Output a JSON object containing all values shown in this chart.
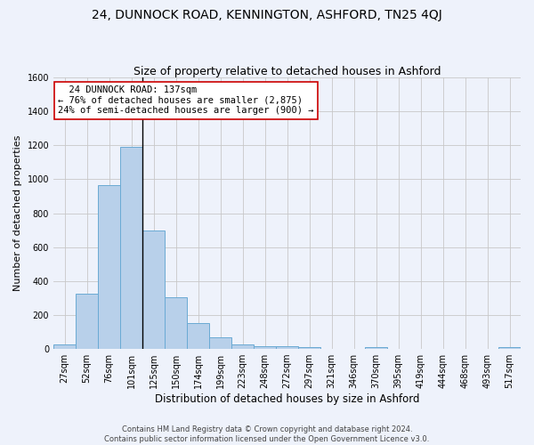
{
  "title": "24, DUNNOCK ROAD, KENNINGTON, ASHFORD, TN25 4QJ",
  "subtitle": "Size of property relative to detached houses in Ashford",
  "xlabel": "Distribution of detached houses by size in Ashford",
  "ylabel": "Number of detached properties",
  "footer_line1": "Contains HM Land Registry data © Crown copyright and database right 2024.",
  "footer_line2": "Contains public sector information licensed under the Open Government Licence v3.0.",
  "bar_labels": [
    "27sqm",
    "52sqm",
    "76sqm",
    "101sqm",
    "125sqm",
    "150sqm",
    "174sqm",
    "199sqm",
    "223sqm",
    "248sqm",
    "272sqm",
    "297sqm",
    "321sqm",
    "346sqm",
    "370sqm",
    "395sqm",
    "419sqm",
    "444sqm",
    "468sqm",
    "493sqm",
    "517sqm"
  ],
  "bar_values": [
    28,
    325,
    965,
    1190,
    700,
    305,
    150,
    70,
    28,
    18,
    15,
    10,
    0,
    0,
    12,
    0,
    0,
    0,
    0,
    0,
    12
  ],
  "bar_color": "#b8d0ea",
  "bar_edge_color": "#6aaad4",
  "property_line_bin": 4,
  "annotation_text": "  24 DUNNOCK ROAD: 137sqm\n← 76% of detached houses are smaller (2,875)\n24% of semi-detached houses are larger (900) →",
  "annotation_box_color": "#ffffff",
  "annotation_box_edge_color": "#cc0000",
  "ylim": [
    0,
    1600
  ],
  "yticks": [
    0,
    200,
    400,
    600,
    800,
    1000,
    1200,
    1400,
    1600
  ],
  "grid_color": "#c8c8c8",
  "bg_color": "#eef2fb",
  "title_fontsize": 10,
  "subtitle_fontsize": 9,
  "ylabel_fontsize": 8,
  "xlabel_fontsize": 8.5,
  "tick_fontsize": 7,
  "annotation_fontsize": 7.5,
  "footer_fontsize": 6
}
